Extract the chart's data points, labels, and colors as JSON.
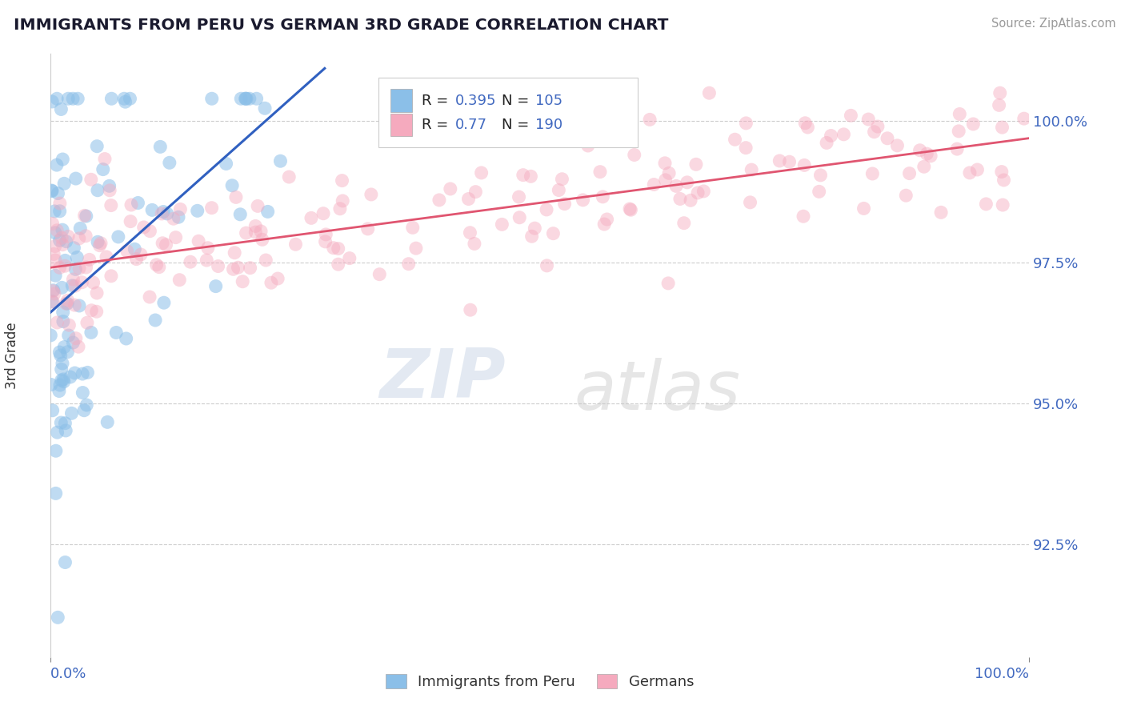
{
  "title": "IMMIGRANTS FROM PERU VS GERMAN 3RD GRADE CORRELATION CHART",
  "source": "Source: ZipAtlas.com",
  "ylabel": "3rd Grade",
  "xmin": 0.0,
  "xmax": 100.0,
  "ymin": 90.5,
  "ymax": 101.2,
  "yticks": [
    92.5,
    95.0,
    97.5,
    100.0
  ],
  "ytick_labels": [
    "92.5%",
    "95.0%",
    "97.5%",
    "100.0%"
  ],
  "blue_color": "#8bbfe8",
  "pink_color": "#f5aabe",
  "blue_line_color": "#3060c0",
  "pink_line_color": "#e05570",
  "blue_R": 0.395,
  "blue_N": 105,
  "pink_R": 0.77,
  "pink_N": 190,
  "watermark_zip": "ZIP",
  "watermark_atlas": "atlas",
  "legend_blue_label": "Immigrants from Peru",
  "legend_pink_label": "Germans"
}
